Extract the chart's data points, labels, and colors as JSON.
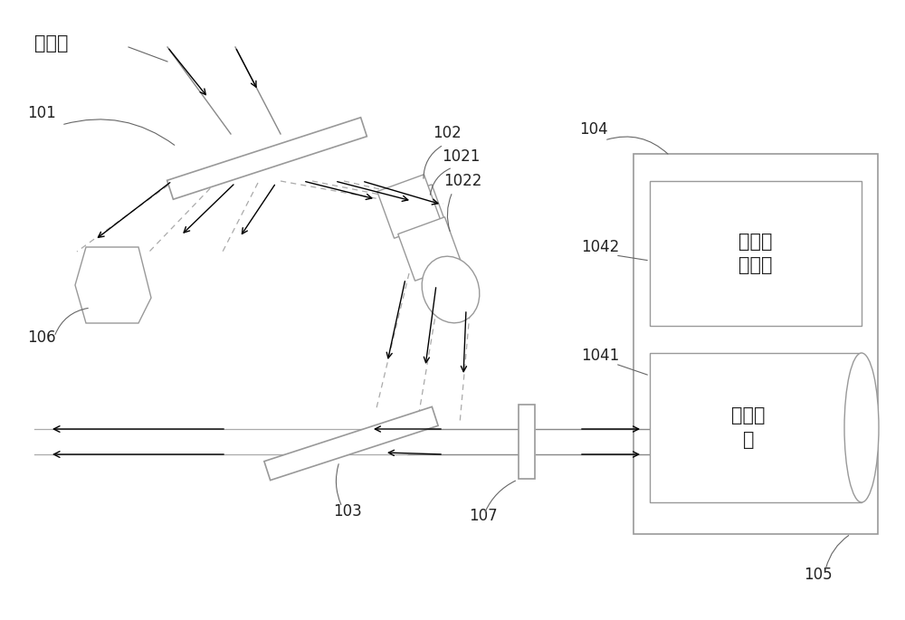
{
  "bg_color": "#ffffff",
  "ec": "#999999",
  "lc_dash": "#aaaaaa",
  "lc_solid": "#888888",
  "tc": "#222222",
  "labels": {
    "incident": "入射光",
    "l101": "101",
    "l102": "102",
    "l1021": "1021",
    "l1022": "1022",
    "l103": "103",
    "l104": "104",
    "l105": "105",
    "l106": "106",
    "l107": "107",
    "l1041": "1041",
    "l1042": "1042",
    "box1": "电光驱\n动电源",
    "box2": "电光晋\n体"
  },
  "figsize": [
    10.0,
    6.85
  ],
  "dpi": 100
}
